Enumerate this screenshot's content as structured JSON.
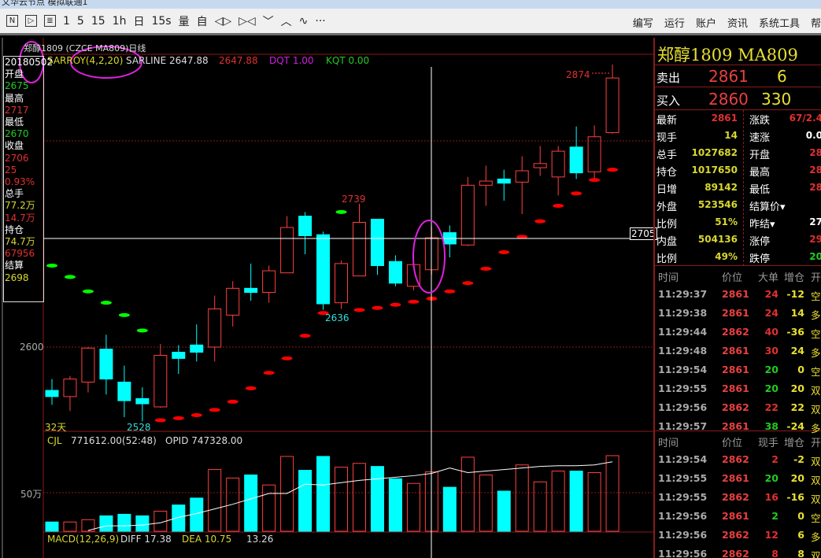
{
  "window": {
    "title": "文华云节点  模拟联通1"
  },
  "toolbar": {
    "items": [
      {
        "label": "N",
        "icon": "news-icon"
      },
      {
        "label": "▷",
        "icon": "play-icon"
      },
      {
        "label": "≣",
        "icon": "document-icon"
      },
      {
        "label": "1"
      },
      {
        "label": "5"
      },
      {
        "label": "15"
      },
      {
        "label": "1h"
      },
      {
        "label": "日"
      },
      {
        "label": "15s"
      },
      {
        "label": "量"
      },
      {
        "label": "自"
      },
      {
        "label": "◁▷",
        "icon": "expand-icon"
      },
      {
        "label": "▷◁",
        "icon": "shrink-icon"
      },
      {
        "label": "﹀",
        "icon": "chevron-down-icon"
      },
      {
        "label": "︿",
        "icon": "chevron-up-icon"
      },
      {
        "label": "∿",
        "icon": "indicator-icon"
      },
      {
        "label": "···",
        "icon": "more-icon"
      }
    ],
    "menu": [
      "编写",
      "运行",
      "账户",
      "资讯",
      "系统工具",
      "帮"
    ]
  },
  "chart": {
    "title": "郑醇1809 (CZCE MA809)日线",
    "legend": {
      "name": "SARROY(4,2,20)",
      "sarline": "SARLINE 2647.88",
      "value": "2647.88",
      "dqt": "DQT 1.00",
      "kqt": "KQT 0.00"
    },
    "price_tick": "2600",
    "crosshair_price": "2705",
    "days": "32天",
    "labels": {
      "high": "2739",
      "low1": "2636",
      "low2": "2528",
      "max": "2874"
    },
    "volume": {
      "label": "CJL",
      "value": "771612.00(52:48)",
      "opid": "OPID 747328.00",
      "tick": "50万"
    },
    "macd": {
      "label": "MACD(12,26,9)",
      "diff": "DIFF 17.38",
      "dea": "DEA 10.75",
      "macd": "13.26"
    },
    "colors": {
      "up": "#ff4040",
      "down": "#00ffff",
      "sar_up": "#ff0000",
      "sar_down": "#00ff00",
      "annotation": "#e020e0"
    }
  },
  "chart_data": {
    "type": "candlestick",
    "ylim": [
      2480,
      2900
    ],
    "ohlc": [
      [
        2558,
        2569,
        2544,
        2552
      ],
      [
        2552,
        2572,
        2538,
        2569
      ],
      [
        2566,
        2600,
        2556,
        2599
      ],
      [
        2598,
        2612,
        2554,
        2569
      ],
      [
        2566,
        2582,
        2532,
        2548
      ],
      [
        2550,
        2561,
        2528,
        2545
      ],
      [
        2542,
        2603,
        2541,
        2592
      ],
      [
        2595,
        2602,
        2574,
        2589
      ],
      [
        2602,
        2622,
        2586,
        2595
      ],
      [
        2600,
        2650,
        2586,
        2637
      ],
      [
        2631,
        2664,
        2620,
        2657
      ],
      [
        2657,
        2681,
        2645,
        2653
      ],
      [
        2653,
        2679,
        2643,
        2674
      ],
      [
        2672,
        2727,
        2672,
        2716
      ],
      [
        2727,
        2731,
        2690,
        2708
      ],
      [
        2709,
        2712,
        2636,
        2642
      ],
      [
        2643,
        2684,
        2637,
        2681
      ],
      [
        2669,
        2739,
        2669,
        2721
      ],
      [
        2724,
        2724,
        2670,
        2679
      ],
      [
        2683,
        2689,
        2659,
        2662
      ],
      [
        2659,
        2680,
        2655,
        2680
      ],
      [
        2675,
        2717,
        2670,
        2706
      ],
      [
        2711,
        2718,
        2687,
        2700
      ],
      [
        2699,
        2765,
        2698,
        2757
      ],
      [
        2757,
        2776,
        2737,
        2761
      ],
      [
        2763,
        2772,
        2742,
        2759
      ],
      [
        2760,
        2785,
        2729,
        2771
      ],
      [
        2774,
        2795,
        2766,
        2778
      ],
      [
        2765,
        2795,
        2747,
        2790
      ],
      [
        2794,
        2814,
        2763,
        2769
      ],
      [
        2770,
        2815,
        2763,
        2804
      ],
      [
        2808,
        2874,
        2807,
        2861
      ]
    ],
    "sar": [
      2679,
      2668,
      2654,
      2643,
      2631,
      2616,
      2529,
      2531,
      2534,
      2539,
      2547,
      2560,
      2575,
      2589,
      2611,
      2633,
      2731,
      2636,
      2638,
      2641,
      2644,
      2647,
      2654,
      2662,
      2676,
      2692,
      2707,
      2722,
      2737,
      2749,
      2762,
      2772
    ],
    "sar_above": [
      true,
      true,
      true,
      true,
      true,
      true,
      false,
      false,
      false,
      false,
      false,
      false,
      false,
      false,
      false,
      false,
      true,
      false,
      false,
      false,
      false,
      false,
      false,
      false,
      false,
      false,
      false,
      false,
      false,
      false,
      false,
      false
    ],
    "volume_wan": [
      12,
      12,
      15,
      20,
      22,
      20,
      26,
      34,
      43,
      80,
      69,
      73,
      60,
      97,
      79,
      97,
      83,
      88,
      84,
      68,
      62,
      77,
      57,
      96,
      73,
      52,
      86,
      64,
      78,
      78,
      76,
      98
    ],
    "open_interest_wan": [
      null,
      null,
      1,
      7,
      7,
      8,
      11,
      18,
      23,
      29,
      35,
      42,
      49,
      49,
      61,
      60,
      63,
      66,
      68,
      70,
      72,
      75,
      82,
      76,
      78,
      80,
      82,
      84,
      85,
      85,
      86,
      90
    ]
  },
  "left_info": [
    {
      "t": "20180502",
      "c": "#fff"
    },
    {
      "t": "开盘",
      "c": "#fff"
    },
    {
      "t": "2675",
      "c": "#22cc22"
    },
    {
      "t": "最高",
      "c": "#fff"
    },
    {
      "t": "2717",
      "c": "#e03030"
    },
    {
      "t": "最低",
      "c": "#fff"
    },
    {
      "t": "2670",
      "c": "#22cc22"
    },
    {
      "t": "收盘",
      "c": "#fff"
    },
    {
      "t": "2706",
      "c": "#e03030"
    },
    {
      "t": "25",
      "c": "#e03030"
    },
    {
      "t": "0.93%",
      "c": "#e03030"
    },
    {
      "t": "总手",
      "c": "#fff"
    },
    {
      "t": "77.2万",
      "c": "#d8d830"
    },
    {
      "t": "14.7万",
      "c": "#e03030"
    },
    {
      "t": "持仓",
      "c": "#fff"
    },
    {
      "t": "74.7万",
      "c": "#d8d830"
    },
    {
      "t": "67956",
      "c": "#e03030"
    },
    {
      "t": "结算",
      "c": "#fff"
    },
    {
      "t": "2698",
      "c": "#d8d830"
    }
  ],
  "quote": {
    "name": "郑醇1809  MA809",
    "sell": {
      "label": "卖出",
      "price": "2861",
      "qty": "6"
    },
    "buy": {
      "label": "买入",
      "price": "2860",
      "qty": "330"
    },
    "left": [
      {
        "l": "最新",
        "v": "2861",
        "c": "#e03030"
      },
      {
        "l": "现手",
        "v": "14",
        "c": "#d8d830"
      },
      {
        "l": "总手",
        "v": "1027682",
        "c": "#d8d830"
      },
      {
        "l": "持仓",
        "v": "1017650",
        "c": "#d8d830"
      },
      {
        "l": "日增",
        "v": "89142",
        "c": "#d8d830"
      },
      {
        "l": "外盘",
        "v": "523546",
        "c": "#d8d830"
      },
      {
        "l": "比例",
        "v": "51%",
        "c": "#d8d830"
      },
      {
        "l": "内盘",
        "v": "504136",
        "c": "#d8d830"
      },
      {
        "l": "比例",
        "v": "49%",
        "c": "#d8d830"
      }
    ],
    "right": [
      {
        "l": "涨跌",
        "v": "67/2.4",
        "c": "#e03030"
      },
      {
        "l": "速涨",
        "v": "0.0",
        "c": "#fff"
      },
      {
        "l": "开盘",
        "v": "28",
        "c": "#e03030"
      },
      {
        "l": "最高",
        "v": "28",
        "c": "#e03030"
      },
      {
        "l": "最低",
        "v": "28",
        "c": "#e03030"
      },
      {
        "l": "结算价▾",
        "v": "",
        "c": "#fff"
      },
      {
        "l": "昨结▾",
        "v": "27",
        "c": "#fff"
      },
      {
        "l": "涨停",
        "v": "29",
        "c": "#e03030"
      },
      {
        "l": "跌停",
        "v": "20",
        "c": "#22cc22"
      }
    ]
  },
  "ticks1": {
    "headers": [
      "时间",
      "价位",
      "大单",
      "增仓",
      "开"
    ],
    "rows": [
      [
        "11:29:37",
        "2861",
        "24",
        "-12",
        "空"
      ],
      [
        "11:29:38",
        "2861",
        "24",
        "14",
        "多"
      ],
      [
        "11:29:44",
        "2862",
        "40",
        "-36",
        "空"
      ],
      [
        "11:29:48",
        "2861",
        "30",
        "24",
        "多"
      ],
      [
        "11:29:54",
        "2861",
        "20",
        "0",
        "空"
      ],
      [
        "11:29:55",
        "2861",
        "20",
        "20",
        "双"
      ],
      [
        "11:29:56",
        "2862",
        "22",
        "22",
        "双"
      ],
      [
        "11:29:57",
        "2861",
        "38",
        "-24",
        "多"
      ]
    ],
    "qty_colors": [
      "#e03030",
      "#e03030",
      "#e03030",
      "#e03030",
      "#22cc22",
      "#22cc22",
      "#e03030",
      "#22cc22"
    ]
  },
  "ticks2": {
    "headers": [
      "时间",
      "价位",
      "现手",
      "增仓",
      "开"
    ],
    "rows": [
      [
        "11:29:54",
        "2862",
        "2",
        "-2",
        "双"
      ],
      [
        "11:29:55",
        "2861",
        "20",
        "20",
        "双"
      ],
      [
        "11:29:55",
        "2862",
        "16",
        "-16",
        "双"
      ],
      [
        "11:29:56",
        "2861",
        "2",
        "0",
        "空"
      ],
      [
        "11:29:56",
        "2862",
        "12",
        "6",
        "多"
      ],
      [
        "11:29:56",
        "2862",
        "8",
        "8",
        "双"
      ]
    ],
    "qty_colors": [
      "#e03030",
      "#22cc22",
      "#e03030",
      "#22cc22",
      "#e03030",
      "#e03030"
    ]
  }
}
